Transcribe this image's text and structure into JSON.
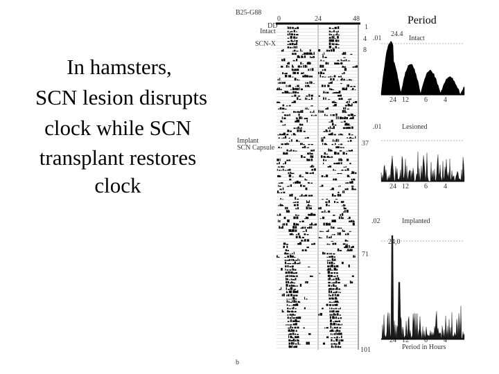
{
  "slide": {
    "lines": [
      "In hamsters,",
      "SCN lesion disrupts",
      "clock while SCN",
      "transplant restores",
      "clock"
    ]
  },
  "figure": {
    "id": "B25-G88",
    "heading": "Period",
    "hours": [
      "0",
      "24",
      "48"
    ],
    "conditions": [
      "DD",
      "Intact",
      "SCN-X",
      "Implant",
      "SCN Capsule"
    ],
    "days": [
      "1",
      "4",
      "8",
      "37",
      "71",
      "101"
    ],
    "panels": [
      {
        "significance": ".01",
        "label": "Intact",
        "peak": "24.4"
      },
      {
        "significance": ".01",
        "label": "Lesioned"
      },
      {
        "significance": ".02",
        "label": "Implanted",
        "peak": "24,0"
      }
    ],
    "period_ticks": [
      "24",
      "12",
      "6",
      "4"
    ],
    "xlabel": "Period in Hours",
    "panel_letter": "b"
  }
}
